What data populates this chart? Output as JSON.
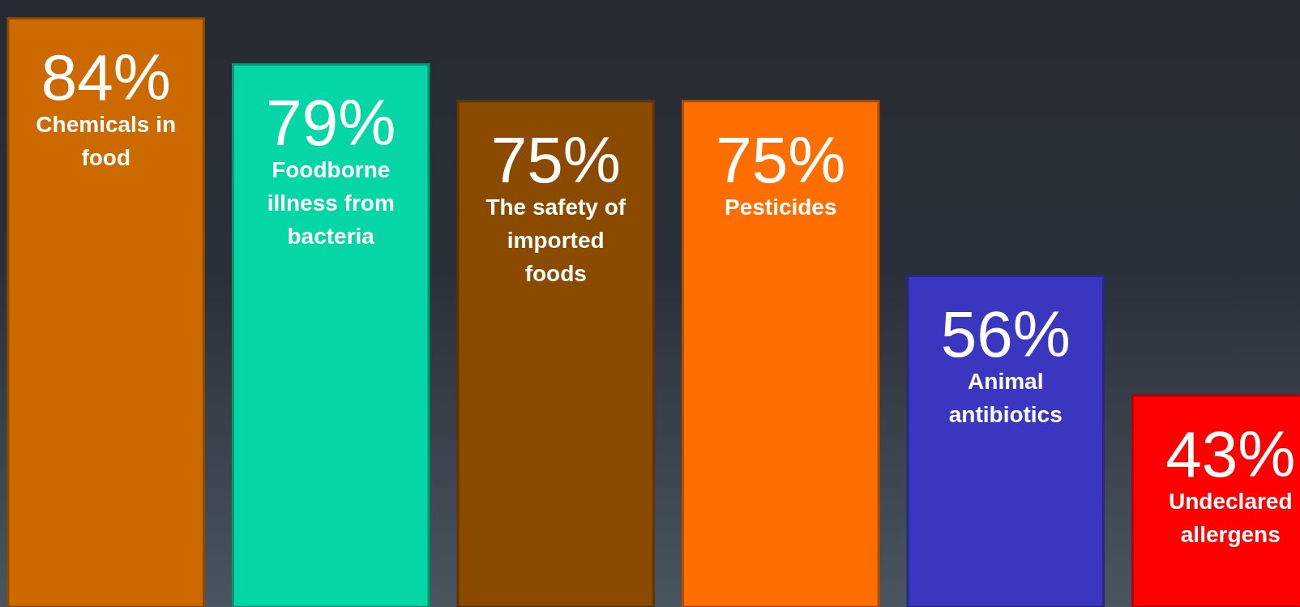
{
  "chart_data": {
    "type": "bar",
    "categories": [
      "Chemicals in food",
      "Foodborne illness from bacteria",
      "The safety of imported foods",
      "Pesticides",
      "Animal antibiotics",
      "Undeclared allergens"
    ],
    "values": [
      84,
      79,
      75,
      75,
      56,
      43
    ],
    "colors": [
      "#cc6a00",
      "#05d6a6",
      "#8a4a00",
      "#ff6e00",
      "#3a36c0",
      "#ff0000"
    ],
    "value_labels": [
      "84%",
      "79%",
      "75%",
      "75%",
      "56%",
      "43%"
    ],
    "ylim": [
      20,
      86
    ]
  }
}
